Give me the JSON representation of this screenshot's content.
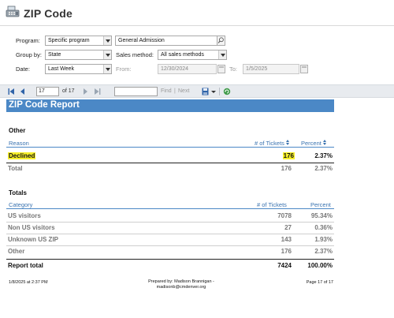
{
  "header": {
    "title": "ZIP Code",
    "icon": "cash-register-icon"
  },
  "filters": {
    "program_label": "Program:",
    "program_value": "Specific program",
    "program_name": "General Admission",
    "group_by_label": "Group by:",
    "group_by_value": "State",
    "sales_method_label": "Sales method:",
    "sales_method_value": "All sales methods",
    "date_label": "Date:",
    "date_value": "Last Week",
    "from_label": "From:",
    "from_value": "12/30/2024",
    "to_label": "To:",
    "to_value": "1/5/2025"
  },
  "toolbar": {
    "page_current": "17",
    "page_of": "of 17",
    "find_label": "Find",
    "separator": "|",
    "next_label": "Next"
  },
  "report": {
    "title": "ZIP Code Report",
    "other_section": {
      "title": "Other",
      "columns": [
        "Reason",
        "# of Tickets",
        "Percent"
      ],
      "rows": [
        {
          "label": "Declined",
          "tickets": "176",
          "percent": "2.37%"
        }
      ],
      "total": {
        "label": "Total",
        "tickets": "176",
        "percent": "2.37%"
      }
    },
    "totals_section": {
      "title": "Totals",
      "columns": [
        "Category",
        "# of Tickets",
        "Percent"
      ],
      "rows": [
        {
          "label": "US visitors",
          "tickets": "7078",
          "percent": "95.34%"
        },
        {
          "label": "Non US visitors",
          "tickets": "27",
          "percent": "0.36%"
        },
        {
          "label": "Unknown US ZIP",
          "tickets": "143",
          "percent": "1.93%"
        },
        {
          "label": "Other",
          "tickets": "176",
          "percent": "2.37%"
        }
      ],
      "total": {
        "label": "Report total",
        "tickets": "7424",
        "percent": "100.00%"
      }
    },
    "footer": {
      "timestamp": "1/8/2025 at 2:37 PM",
      "prepared_by_line1": "Prepared by: Madison Brannigan -",
      "prepared_by_line2": "madisonb@cmdenver.org",
      "page": "Page 17 of 17"
    }
  },
  "colors": {
    "accent": "#4b88c6",
    "highlight": "#f7f02a",
    "toolbar_bg": "#e8ebef"
  }
}
